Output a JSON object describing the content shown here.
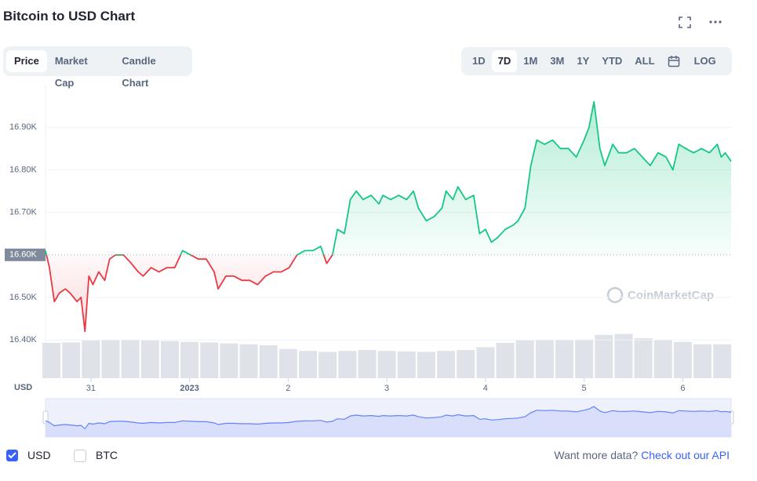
{
  "header": {
    "title": "Bitcoin to USD Chart"
  },
  "tabs": {
    "items": [
      "Price",
      "Market Cap",
      "Candle Chart"
    ],
    "active": 0
  },
  "ranges": {
    "items": [
      "1D",
      "7D",
      "1M",
      "3M",
      "1Y",
      "YTD",
      "ALL"
    ],
    "active": 1,
    "log": "LOG"
  },
  "chart_data": {
    "type": "line",
    "x": [
      0.54,
      0.58,
      0.63,
      0.68,
      0.74,
      0.79,
      0.86,
      0.9,
      0.94,
      0.98,
      1.02,
      1.08,
      1.14,
      1.19,
      1.25,
      1.33,
      1.41,
      1.48,
      1.53,
      1.61,
      1.69,
      1.77,
      1.85,
      1.93,
      2.01,
      2.09,
      2.17,
      2.25,
      2.29,
      2.37,
      2.45,
      2.53,
      2.61,
      2.69,
      2.77,
      2.85,
      2.93,
      3.01,
      3.09,
      3.17,
      3.25,
      3.33,
      3.39,
      3.45,
      3.5,
      3.57,
      3.63,
      3.69,
      3.76,
      3.84,
      3.92,
      3.96,
      4.04,
      4.12,
      4.2,
      4.27,
      4.32,
      4.4,
      4.48,
      4.56,
      4.6,
      4.67,
      4.72,
      4.8,
      4.88,
      4.94,
      5.0,
      5.06,
      5.12,
      5.2,
      5.28,
      5.33,
      5.4,
      5.46,
      5.52,
      5.6,
      5.68,
      5.76,
      5.84,
      5.92,
      6.0,
      6.05,
      6.1,
      6.16,
      6.21,
      6.29,
      6.35,
      6.43,
      6.51,
      6.59,
      6.67,
      6.75,
      6.83,
      6.9,
      6.96,
      7.03,
      7.11,
      7.19,
      7.27,
      7.35,
      7.39,
      7.43,
      7.49
    ],
    "values": [
      16.61,
      16.57,
      16.49,
      16.51,
      16.52,
      16.51,
      16.49,
      16.5,
      16.42,
      16.55,
      16.53,
      16.56,
      16.54,
      16.59,
      16.6,
      16.6,
      16.58,
      16.56,
      16.55,
      16.57,
      16.56,
      16.57,
      16.57,
      16.61,
      16.6,
      16.59,
      16.59,
      16.56,
      16.52,
      16.55,
      16.55,
      16.54,
      16.54,
      16.53,
      16.55,
      16.56,
      16.56,
      16.57,
      16.6,
      16.61,
      16.61,
      16.62,
      16.58,
      16.6,
      16.66,
      16.65,
      16.73,
      16.75,
      16.73,
      16.74,
      16.72,
      16.74,
      16.73,
      16.74,
      16.73,
      16.75,
      16.71,
      16.68,
      16.69,
      16.71,
      16.75,
      16.73,
      16.76,
      16.73,
      16.74,
      16.65,
      16.66,
      16.63,
      16.64,
      16.66,
      16.67,
      16.68,
      16.71,
      16.81,
      16.87,
      16.86,
      16.87,
      16.85,
      16.85,
      16.83,
      16.87,
      16.9,
      16.96,
      16.85,
      16.81,
      16.86,
      16.84,
      16.84,
      16.85,
      16.83,
      16.81,
      16.84,
      16.83,
      16.8,
      16.86,
      16.85,
      16.84,
      16.85,
      16.84,
      16.86,
      16.83,
      16.84,
      16.82
    ],
    "up_color": "#16c784",
    "down_color": "#ea3943",
    "reference_line": 16.6,
    "xlim": [
      0.54,
      7.49
    ],
    "ylim": [
      16.31,
      17.0
    ],
    "xticks": [
      {
        "value": 1,
        "label": "31"
      },
      {
        "value": 2,
        "label": "2023"
      },
      {
        "value": 3,
        "label": "2"
      },
      {
        "value": 4,
        "label": "3"
      },
      {
        "value": 5,
        "label": "4"
      },
      {
        "value": 6,
        "label": "5"
      },
      {
        "value": 7,
        "label": "6"
      }
    ],
    "yticks": [
      {
        "value": 16.4,
        "label": "16.40K"
      },
      {
        "value": 16.5,
        "label": "16.50K"
      },
      {
        "value": 16.6,
        "label": "16.60K"
      },
      {
        "value": 16.7,
        "label": "16.70K"
      },
      {
        "value": 16.8,
        "label": "16.80K"
      },
      {
        "value": 16.9,
        "label": "16.90K"
      }
    ],
    "y_axis_label": "USD",
    "grid": true,
    "volume": {
      "x": [
        0.6,
        0.8,
        1.0,
        1.2,
        1.4,
        1.6,
        1.8,
        2.0,
        2.2,
        2.4,
        2.6,
        2.8,
        3.0,
        3.2,
        3.4,
        3.6,
        3.8,
        4.0,
        4.2,
        4.4,
        4.6,
        4.8,
        5.0,
        5.2,
        5.4,
        5.6,
        5.8,
        6.0,
        6.2,
        6.4,
        6.6,
        6.8,
        7.0,
        7.2,
        7.4
      ],
      "values": [
        75,
        76,
        80,
        81,
        81,
        80,
        79,
        77,
        76,
        74,
        72,
        70,
        62,
        58,
        56,
        58,
        60,
        58,
        57,
        56,
        58,
        60,
        66,
        75,
        80,
        81,
        81,
        82,
        92,
        94,
        85,
        81,
        77,
        72,
        72
      ],
      "ylim": [
        0,
        100
      ],
      "color": "#dfe2e8"
    },
    "watermark": "CoinMarketCap"
  },
  "footer": {
    "currencies": [
      "USD",
      "BTC"
    ],
    "checked": [
      true,
      false
    ],
    "prompt": "Want more data?",
    "link": "Check out our API"
  }
}
